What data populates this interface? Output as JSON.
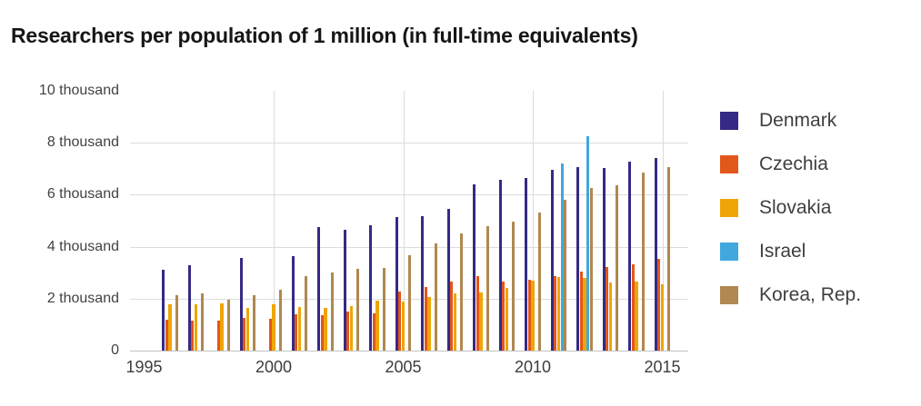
{
  "title": "Researchers per population of 1 million (in full-time equivalents)",
  "chart_data": {
    "type": "bar",
    "title": "Researchers per population of 1 million (in full-time equivalents)",
    "x": [
      1996,
      1997,
      1998,
      1999,
      2000,
      2001,
      2002,
      2003,
      2004,
      2005,
      2006,
      2007,
      2008,
      2009,
      2010,
      2011,
      2012,
      2013,
      2014,
      2015
    ],
    "series": [
      {
        "name": "Denmark",
        "color": "#342a85",
        "values": [
          3100,
          3300,
          null,
          3550,
          null,
          3630,
          4750,
          4640,
          4840,
          5140,
          5190,
          5450,
          6410,
          6590,
          6640,
          6960,
          7070,
          7020,
          7280,
          7400
        ]
      },
      {
        "name": "Czechia",
        "color": "#e2571a",
        "values": [
          1200,
          1150,
          1160,
          1270,
          1240,
          1390,
          1370,
          1510,
          1450,
          2290,
          2460,
          2660,
          2850,
          2640,
          2720,
          2850,
          3050,
          3200,
          3330,
          3540
        ]
      },
      {
        "name": "Slovakia",
        "color": "#efa506",
        "values": [
          1780,
          1790,
          1830,
          1650,
          1780,
          1690,
          1650,
          1710,
          1920,
          1880,
          2080,
          2200,
          2230,
          2430,
          2680,
          2820,
          2780,
          2610,
          2670,
          2550
        ]
      },
      {
        "name": "Israel",
        "color": "#41a8dd",
        "values": [
          null,
          null,
          null,
          null,
          null,
          null,
          null,
          null,
          null,
          null,
          null,
          null,
          null,
          null,
          null,
          7190,
          8250,
          null,
          null,
          null
        ]
      },
      {
        "name": "Korea, Rep.",
        "color": "#b08850",
        "values": [
          2120,
          2190,
          1950,
          2120,
          2340,
          2850,
          3000,
          3160,
          3190,
          3660,
          4120,
          4500,
          4790,
          4960,
          5310,
          5800,
          6260,
          6380,
          6840,
          7050
        ]
      }
    ],
    "y_ticks": [
      {
        "value": 0,
        "label": "0"
      },
      {
        "value": 2000,
        "label": "2 thousand"
      },
      {
        "value": 4000,
        "label": "4 thousand"
      },
      {
        "value": 6000,
        "label": "6 thousand"
      },
      {
        "value": 8000,
        "label": "8 thousand"
      },
      {
        "value": 10000,
        "label": "10 thousand"
      }
    ],
    "x_ticks": [
      {
        "year": 1995,
        "label": "1995",
        "gridline": false
      },
      {
        "year": 2000,
        "label": "2000",
        "gridline": true
      },
      {
        "year": 2005,
        "label": "2005",
        "gridline": true
      },
      {
        "year": 2010,
        "label": "2010",
        "gridline": true
      },
      {
        "year": 2015,
        "label": "2015",
        "gridline": true
      }
    ],
    "ylim": [
      0,
      10000
    ],
    "xlabel": "",
    "ylabel": "",
    "grid": true,
    "legend_position": "right"
  }
}
